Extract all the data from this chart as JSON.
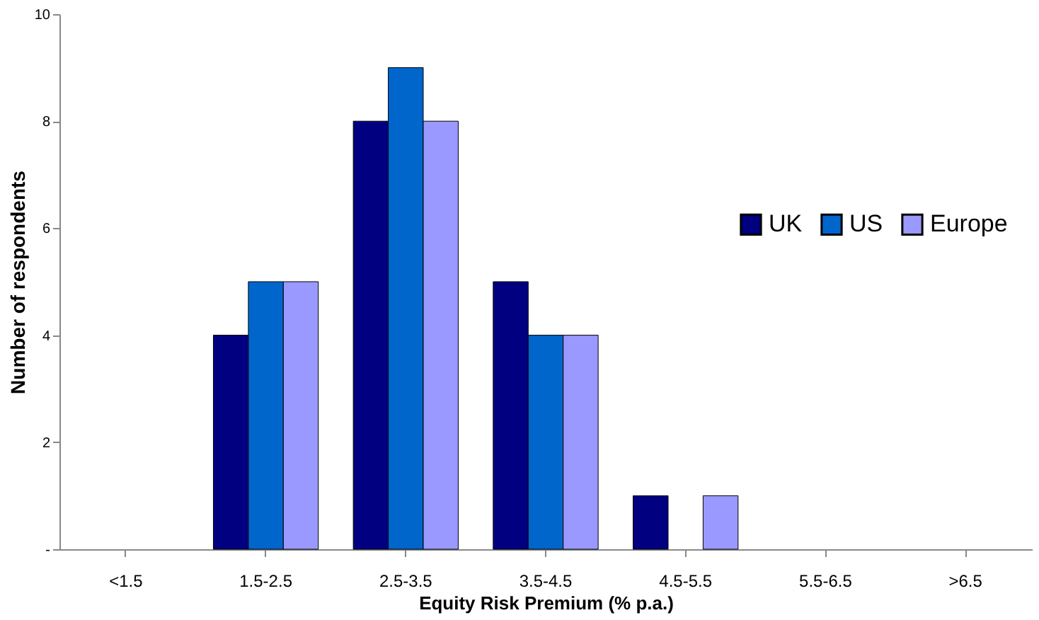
{
  "chart_data": {
    "type": "bar",
    "categories": [
      "<1.5",
      "1.5-2.5",
      "2.5-3.5",
      "3.5-4.5",
      "4.5-5.5",
      "5.5-6.5",
      ">6.5"
    ],
    "series": [
      {
        "name": "UK",
        "color": "#000080",
        "values": [
          0,
          4,
          8,
          5,
          1,
          0,
          0
        ]
      },
      {
        "name": "US",
        "color": "#0066cc",
        "values": [
          0,
          5,
          9,
          4,
          0,
          0,
          0
        ]
      },
      {
        "name": "Europe",
        "color": "#9999ff",
        "values": [
          0,
          5,
          8,
          4,
          1,
          0,
          0
        ]
      }
    ],
    "xlabel": "Equity Risk Premium (% p.a.)",
    "ylabel": "Number of respondents",
    "ylim": [
      0,
      10
    ],
    "yticks": [
      {
        "value": 0,
        "label": "-"
      },
      2,
      4,
      6,
      8,
      10
    ],
    "grid": false,
    "legend": "right"
  }
}
